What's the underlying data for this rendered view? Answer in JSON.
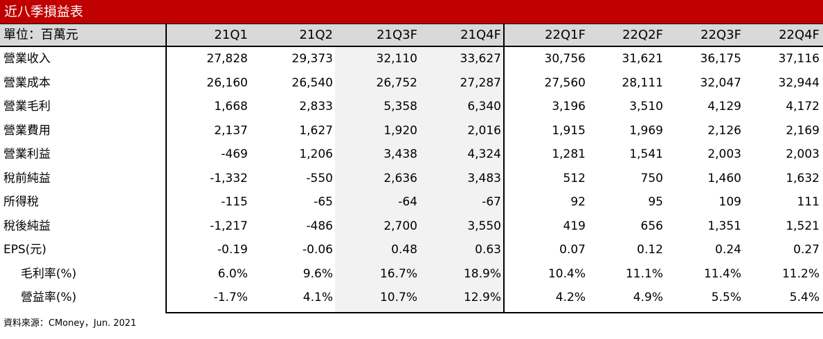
{
  "title": "近八季損益表",
  "header": {
    "unit_label": "單位：百萬元",
    "columns": [
      "21Q1",
      "21Q2",
      "21Q3F",
      "21Q4F",
      "22Q1F",
      "22Q2F",
      "22Q3F",
      "22Q4F"
    ]
  },
  "rows": [
    {
      "label": "營業收入",
      "indent": false,
      "values": [
        "27,828",
        "29,373",
        "32,110",
        "33,627",
        "30,756",
        "31,621",
        "36,175",
        "37,116"
      ]
    },
    {
      "label": "營業成本",
      "indent": false,
      "values": [
        "26,160",
        "26,540",
        "26,752",
        "27,287",
        "27,560",
        "28,111",
        "32,047",
        "32,944"
      ]
    },
    {
      "label": "營業毛利",
      "indent": false,
      "values": [
        "1,668",
        "2,833",
        "5,358",
        "6,340",
        "3,196",
        "3,510",
        "4,129",
        "4,172"
      ]
    },
    {
      "label": "營業費用",
      "indent": false,
      "values": [
        "2,137",
        "1,627",
        "1,920",
        "2,016",
        "1,915",
        "1,969",
        "2,126",
        "2,169"
      ]
    },
    {
      "label": "營業利益",
      "indent": false,
      "values": [
        "-469",
        "1,206",
        "3,438",
        "4,324",
        "1,281",
        "1,541",
        "2,003",
        "2,003"
      ]
    },
    {
      "label": "稅前純益",
      "indent": false,
      "values": [
        "-1,332",
        "-550",
        "2,636",
        "3,483",
        "512",
        "750",
        "1,460",
        "1,632"
      ]
    },
    {
      "label": "所得稅",
      "indent": false,
      "values": [
        "-115",
        "-65",
        "-64",
        "-67",
        "92",
        "95",
        "109",
        "111"
      ]
    },
    {
      "label": "稅後純益",
      "indent": false,
      "values": [
        "-1,217",
        "-486",
        "2,700",
        "3,550",
        "419",
        "656",
        "1,351",
        "1,521"
      ]
    },
    {
      "label": "EPS(元)",
      "indent": false,
      "values": [
        "-0.19",
        "-0.06",
        "0.48",
        "0.63",
        "0.07",
        "0.12",
        "0.24",
        "0.27"
      ]
    },
    {
      "label": "毛利率(%)",
      "indent": true,
      "values": [
        "6.0%",
        "9.6%",
        "16.7%",
        "18.9%",
        "10.4%",
        "11.1%",
        "11.4%",
        "11.2%"
      ]
    },
    {
      "label": "營益率(%)",
      "indent": true,
      "values": [
        "-1.7%",
        "4.1%",
        "10.7%",
        "12.9%",
        "4.2%",
        "4.9%",
        "5.5%",
        "5.4%"
      ]
    }
  ],
  "source": "資料來源：CMoney，Jun. 2021",
  "colors": {
    "title_bg": "#c00000",
    "header_bg": "#d9d9d9",
    "forecast_shade": "#f2f2f2"
  }
}
